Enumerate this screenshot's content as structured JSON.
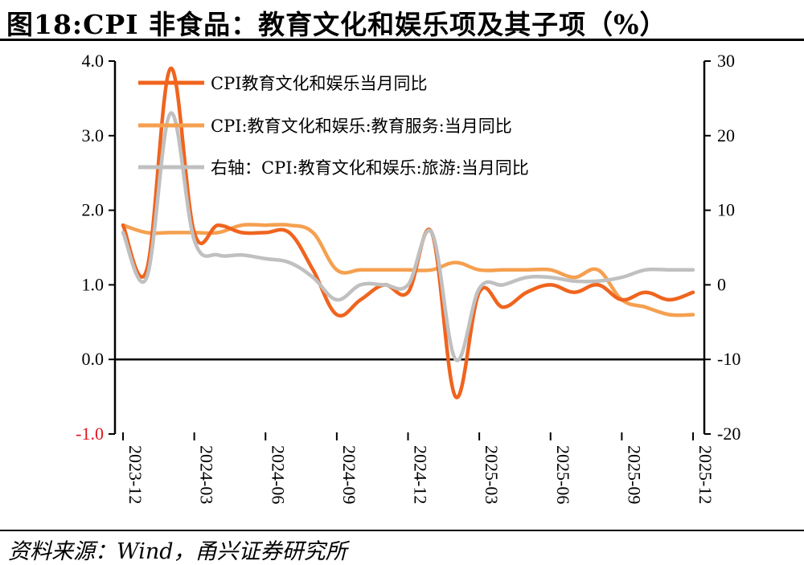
{
  "title": "图18:CPI 非食品：教育文化和娱乐项及其子项（%）",
  "source": "资料来源：Wind，甬兴证券研究所",
  "chart_data": {
    "type": "line",
    "title": "图18:CPI 非食品：教育文化和娱乐项及其子项（%）",
    "x_tick_labels": [
      "2023-12",
      "2024-03",
      "2024-06",
      "2024-09",
      "2024-12",
      "2025-03",
      "2025-06",
      "2025-09",
      "2025-12"
    ],
    "x": [
      "2023-12",
      "2024-01",
      "2024-02",
      "2024-03",
      "2024-04",
      "2024-05",
      "2024-06",
      "2024-07",
      "2024-08",
      "2024-09",
      "2024-10",
      "2024-11",
      "2024-12",
      "2025-01",
      "2025-02",
      "2025-03",
      "2025-04",
      "2025-05",
      "2025-06",
      "2025-07",
      "2025-08",
      "2025-09",
      "2025-10",
      "2025-11",
      "2025-12"
    ],
    "y_left": {
      "ylim": [
        -1.0,
        4.0
      ],
      "ticks": [
        "4.0",
        "3.0",
        "2.0",
        "1.0",
        "0.0",
        "-1.0"
      ],
      "tick_values": [
        4,
        3,
        2,
        1,
        0,
        -1
      ],
      "negative_color": "#e0141e"
    },
    "y_right": {
      "ylim": [
        -20,
        30
      ],
      "ticks": [
        "30",
        "20",
        "10",
        "0",
        "-10",
        "-20"
      ],
      "tick_values": [
        30,
        20,
        10,
        0,
        -10,
        -20
      ]
    },
    "series": [
      {
        "name": "CPI教育文化和娱乐当月同比",
        "axis": "left",
        "color": "#f0641e",
        "width": 4.5,
        "values": [
          1.8,
          1.2,
          3.9,
          1.7,
          1.8,
          1.7,
          1.7,
          1.7,
          1.2,
          0.6,
          0.8,
          1.0,
          0.9,
          1.7,
          -0.5,
          0.9,
          0.7,
          0.9,
          1.0,
          0.9,
          1.0,
          0.8,
          0.9,
          0.8,
          0.9
        ]
      },
      {
        "name": "CPI:教育文化和娱乐:教育服务:当月同比",
        "axis": "left",
        "color": "#f5a050",
        "width": 4.5,
        "values": [
          1.8,
          1.7,
          1.7,
          1.7,
          1.7,
          1.8,
          1.8,
          1.8,
          1.7,
          1.2,
          1.2,
          1.2,
          1.2,
          1.2,
          1.3,
          1.2,
          1.2,
          1.2,
          1.2,
          1.1,
          1.2,
          0.8,
          0.7,
          0.6,
          0.6
        ]
      },
      {
        "name": "右轴：CPI:教育文化和娱乐:旅游:当月同比",
        "axis": "right",
        "color": "#c0c0c0",
        "width": 4.5,
        "values": [
          7,
          1,
          23,
          6,
          4,
          4,
          3.5,
          3,
          1,
          -2,
          0,
          0,
          0,
          7,
          -10,
          -0.5,
          0,
          1,
          1,
          0.5,
          0.5,
          1,
          2,
          2,
          2
        ]
      }
    ],
    "legend": "top-left",
    "grid": false
  }
}
